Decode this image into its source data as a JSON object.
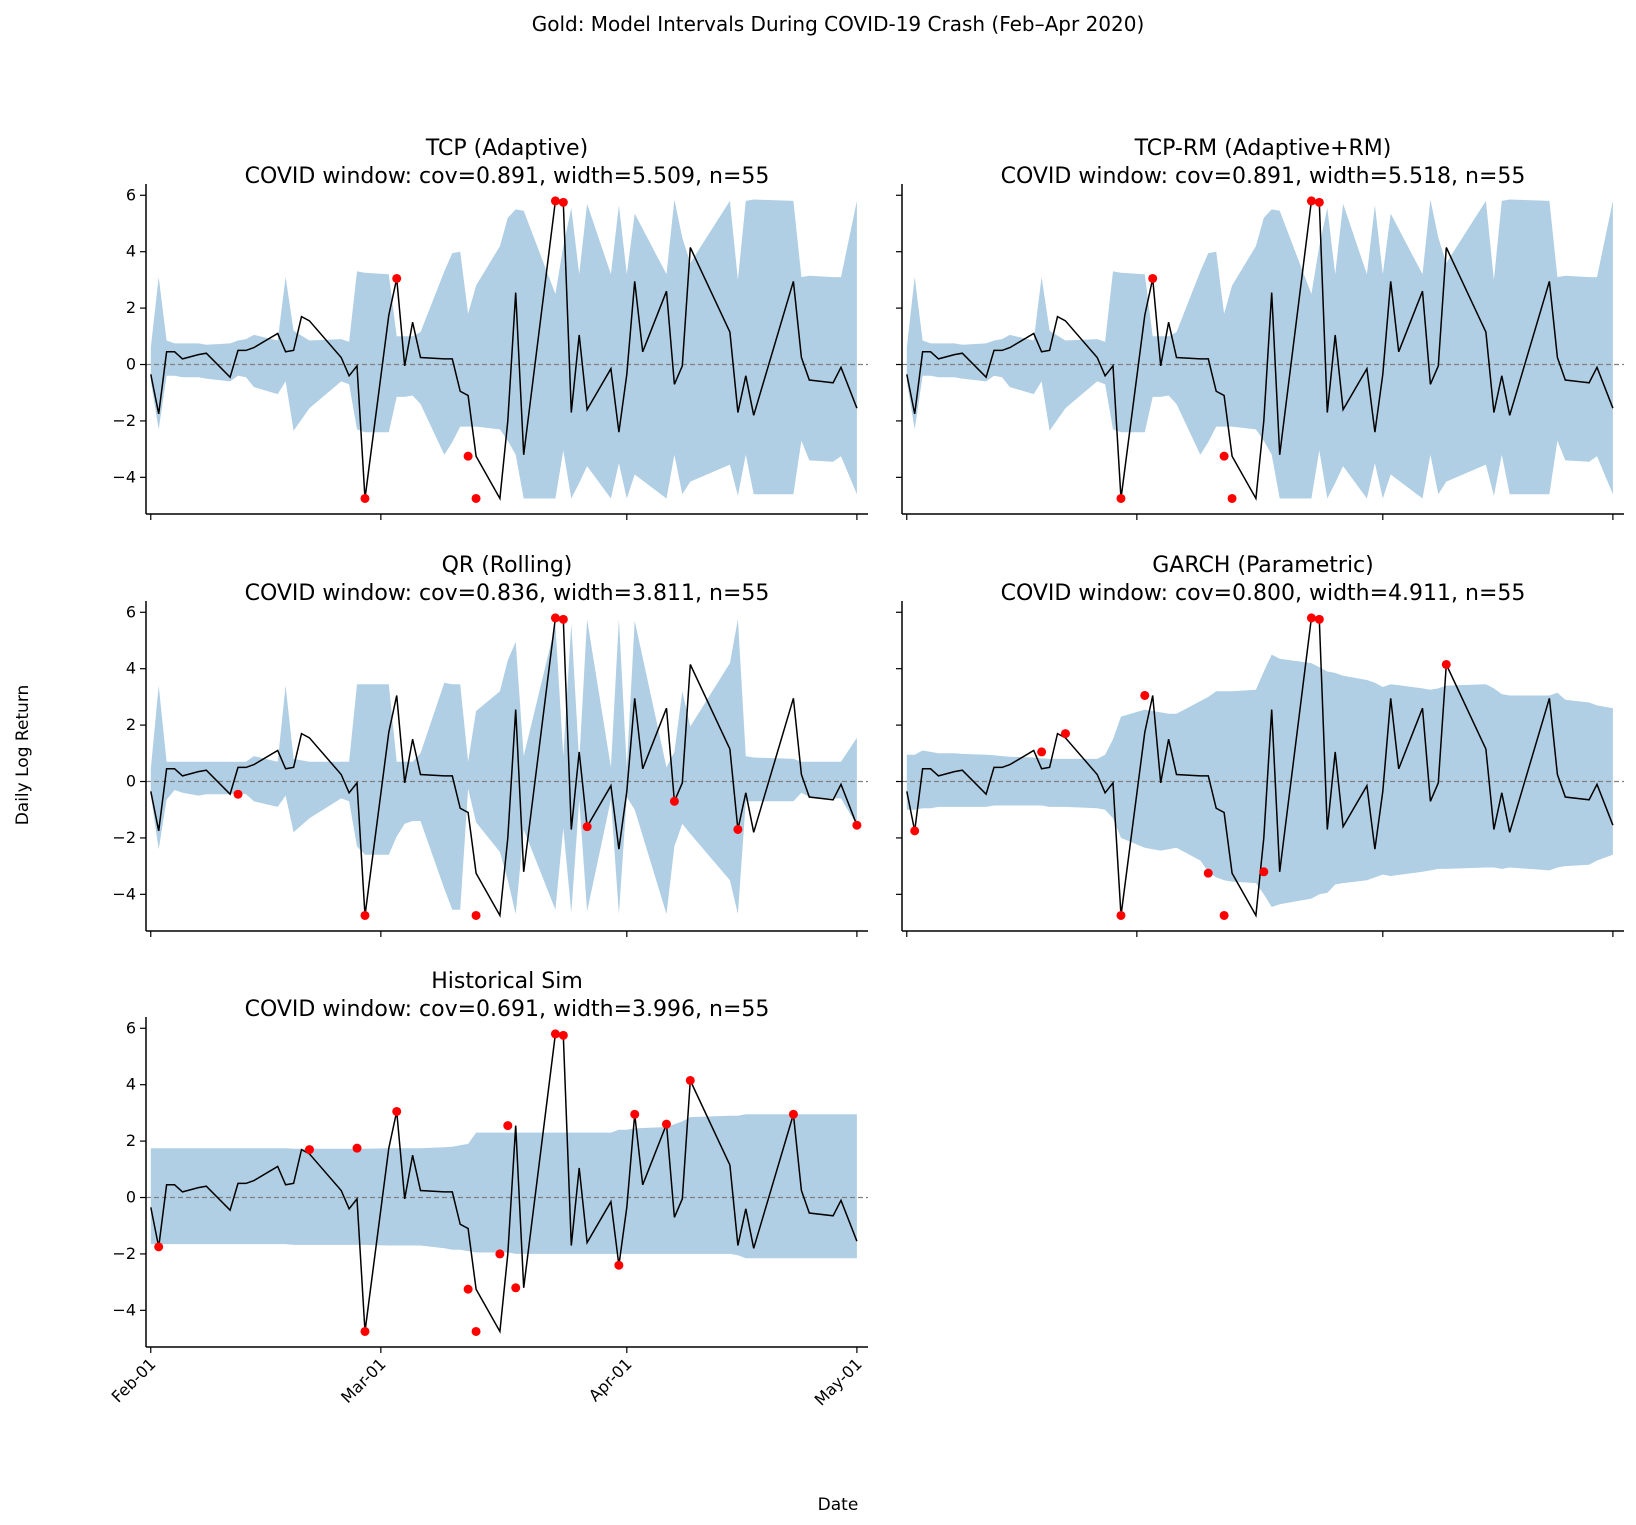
{
  "figure": {
    "suptitle": "Gold: Model Intervals During COVID-19 Crash (Feb–Apr 2020)",
    "xlabel": "Date",
    "ylabel": "Daily Log Return"
  },
  "colors": {
    "band": "#b0cfe4",
    "line": "#000000",
    "miss": "#ff0000",
    "zero": "#808080"
  },
  "chart_data": [
    {
      "type": "line",
      "id": "tcp",
      "title": "TCP (Adaptive)",
      "subtitle": "COVID window: cov=0.891, width=5.509, n=55",
      "xlim": [
        -0.6,
        90.4
      ],
      "ylim": [
        -5.3,
        6.4
      ],
      "yticks": [
        -4,
        -2,
        0,
        2,
        4,
        6
      ],
      "ytick_labels": [
        "−4",
        "−2",
        "0",
        "2",
        "4",
        "6"
      ],
      "show_xticklabels": false,
      "lower": [
        -0.6,
        -2.3,
        -0.4,
        -0.4,
        -0.45,
        -0.45,
        -0.5,
        -0.6,
        -0.4,
        -0.45,
        -0.8,
        -1.05,
        -0.6,
        -2.35,
        -1.55,
        -0.6,
        -0.7,
        -2.3,
        -2.4,
        -2.4,
        -1.15,
        -1.15,
        -1.1,
        -1.4,
        -3.2,
        -2.75,
        -2.2,
        -2.2,
        -2.2,
        -2.3,
        -2.7,
        -3.2,
        -4.75,
        -4.75,
        -3.05,
        -4.75,
        -4.2,
        -3.6,
        -4.75,
        -3.5,
        -4.75,
        -3.9,
        -4.75,
        -3.2,
        -4.6,
        -4.15,
        -3.55,
        -4.65,
        -3.2,
        -4.6,
        -4.6,
        -2.7,
        -3.4,
        -3.45,
        -3.25,
        -4.6
      ],
      "upper": [
        0.6,
        3.1,
        0.85,
        0.75,
        0.75,
        0.75,
        0.7,
        0.75,
        0.85,
        0.9,
        1.05,
        0.85,
        3.1,
        1.2,
        0.85,
        0.9,
        0.8,
        3.3,
        3.25,
        3.2,
        1.0,
        1.0,
        1.0,
        1.15,
        3.3,
        3.95,
        4.0,
        1.8,
        2.8,
        4.2,
        5.2,
        5.5,
        5.45,
        2.5,
        4.2,
        5.55,
        3.2,
        5.7,
        3.2,
        5.65,
        3.2,
        5.35,
        3.2,
        5.85,
        4.5,
        3.6,
        5.8,
        3.0,
        5.8,
        5.85,
        5.8,
        3.1,
        3.15,
        3.1,
        3.1,
        5.8
      ],
      "misses": [
        [
          31,
          3.05
        ],
        [
          27,
          -4.75
        ],
        [
          40,
          -3.25
        ],
        [
          41,
          -4.75
        ],
        [
          51,
          5.8
        ],
        [
          52,
          5.75
        ]
      ]
    },
    {
      "type": "line",
      "id": "tcprm",
      "title": "TCP-RM (Adaptive+RM)",
      "subtitle": "COVID window: cov=0.891, width=5.518, n=55",
      "xlim": [
        -0.6,
        90.4
      ],
      "ylim": [
        -5.3,
        6.4
      ],
      "yticks": [
        -4,
        -2,
        0,
        2,
        4,
        6
      ],
      "ytick_labels": [
        "−4",
        "−2",
        "0",
        "2",
        "4",
        "6"
      ],
      "show_xticklabels": false,
      "lower": [
        -0.6,
        -2.3,
        -0.4,
        -0.4,
        -0.45,
        -0.45,
        -0.5,
        -0.6,
        -0.4,
        -0.45,
        -0.8,
        -1.05,
        -0.6,
        -2.35,
        -1.55,
        -0.6,
        -0.7,
        -2.3,
        -2.4,
        -2.4,
        -1.15,
        -1.15,
        -1.1,
        -1.4,
        -3.2,
        -2.75,
        -2.2,
        -2.2,
        -2.2,
        -2.3,
        -2.7,
        -3.2,
        -4.75,
        -4.75,
        -3.05,
        -4.75,
        -4.2,
        -3.6,
        -4.75,
        -3.5,
        -4.75,
        -3.9,
        -4.75,
        -3.2,
        -4.6,
        -4.15,
        -3.55,
        -4.65,
        -3.2,
        -4.6,
        -4.6,
        -2.7,
        -3.4,
        -3.45,
        -3.25,
        -4.6
      ],
      "upper": [
        0.6,
        3.1,
        0.85,
        0.75,
        0.75,
        0.75,
        0.7,
        0.75,
        0.85,
        0.9,
        1.05,
        0.85,
        3.1,
        1.2,
        0.85,
        0.9,
        0.8,
        3.3,
        3.25,
        3.2,
        1.0,
        1.0,
        1.0,
        1.15,
        3.3,
        3.95,
        4.0,
        1.8,
        2.8,
        4.2,
        5.2,
        5.5,
        5.45,
        2.5,
        4.2,
        5.55,
        3.2,
        5.7,
        3.2,
        5.65,
        3.2,
        5.35,
        3.2,
        5.85,
        4.5,
        3.6,
        5.8,
        3.0,
        5.8,
        5.85,
        5.8,
        3.1,
        3.15,
        3.1,
        3.1,
        5.8
      ],
      "misses": [
        [
          31,
          3.05
        ],
        [
          27,
          -4.75
        ],
        [
          40,
          -3.25
        ],
        [
          41,
          -4.75
        ],
        [
          51,
          5.8
        ],
        [
          52,
          5.75
        ]
      ]
    },
    {
      "type": "line",
      "id": "qr",
      "title": "QR (Rolling)",
      "subtitle": "COVID window: cov=0.836, width=3.811, n=55",
      "xlim": [
        -0.6,
        90.4
      ],
      "ylim": [
        -5.3,
        6.4
      ],
      "yticks": [
        -4,
        -2,
        0,
        2,
        4,
        6
      ],
      "ytick_labels": [
        "−4",
        "−2",
        "0",
        "2",
        "4",
        "6"
      ],
      "show_xticklabels": false,
      "lower": [
        -0.5,
        -2.4,
        -0.65,
        -0.3,
        -0.4,
        -0.5,
        -0.45,
        -0.45,
        -0.4,
        -0.45,
        -0.7,
        -0.9,
        -0.5,
        -1.8,
        -1.3,
        -0.6,
        -0.7,
        -2.3,
        -2.6,
        -2.6,
        -1.95,
        -1.5,
        -1.4,
        -1.4,
        -3.8,
        -4.55,
        -4.55,
        -0.25,
        -1.45,
        -2.5,
        -3.5,
        -4.7,
        -1.7,
        -4.55,
        -1.65,
        -4.65,
        -0.65,
        -4.6,
        -0.65,
        -4.7,
        -0.55,
        -1.0,
        -4.7,
        -2.3,
        -1.5,
        -1.85,
        -3.5,
        -4.7,
        -0.7,
        -0.7,
        -0.7,
        -0.4,
        -0.55,
        -0.6,
        -0.6,
        -1.55
      ],
      "upper": [
        0.45,
        3.4,
        0.7,
        0.7,
        0.7,
        0.7,
        0.7,
        0.7,
        0.7,
        0.7,
        0.9,
        0.7,
        3.4,
        0.8,
        0.7,
        0.7,
        0.7,
        3.45,
        3.45,
        3.45,
        0.7,
        0.7,
        0.7,
        1.0,
        3.5,
        3.45,
        3.45,
        0.7,
        2.5,
        3.2,
        4.3,
        4.95,
        0.9,
        5.55,
        0.9,
        5.6,
        0.7,
        5.75,
        0.5,
        5.75,
        0.5,
        5.7,
        0.5,
        1.05,
        3.2,
        1.95,
        4.2,
        5.75,
        0.9,
        0.85,
        0.8,
        0.7,
        0.7,
        0.7,
        0.7,
        1.55
      ],
      "misses": [
        [
          11,
          -0.45
        ],
        [
          27,
          -4.75
        ],
        [
          41,
          -4.75
        ],
        [
          51,
          5.8
        ],
        [
          52,
          5.75
        ],
        [
          55,
          -1.6
        ],
        [
          66,
          -0.7
        ],
        [
          74,
          -1.7
        ],
        [
          89,
          -1.55
        ]
      ]
    },
    {
      "type": "line",
      "id": "garch",
      "title": "GARCH (Parametric)",
      "subtitle": "COVID window: cov=0.800, width=4.911, n=55",
      "xlim": [
        -0.6,
        90.4
      ],
      "ylim": [
        -5.3,
        6.4
      ],
      "yticks": [
        -4,
        -2,
        0,
        2,
        4,
        6
      ],
      "ytick_labels": [
        "−4",
        "−2",
        "0",
        "2",
        "4",
        "6"
      ],
      "show_xticklabels": false,
      "lower": [
        -1.0,
        -1.0,
        -0.95,
        -0.95,
        -0.9,
        -0.9,
        -0.9,
        -0.9,
        -0.85,
        -0.85,
        -0.85,
        -0.85,
        -0.85,
        -0.9,
        -0.9,
        -0.95,
        -1.0,
        -1.3,
        -2.0,
        -2.35,
        -2.4,
        -2.45,
        -2.4,
        -2.35,
        -2.8,
        -3.2,
        -3.4,
        -3.5,
        -3.55,
        -3.6,
        -4.0,
        -4.45,
        -4.35,
        -4.15,
        -4.0,
        -3.95,
        -3.65,
        -3.6,
        -3.5,
        -3.4,
        -3.3,
        -3.35,
        -3.2,
        -3.15,
        -3.1,
        -3.1,
        -3.05,
        -3.05,
        -3.1,
        -3.05,
        -3.15,
        -3.05,
        -3.0,
        -2.95,
        -2.8,
        -2.6
      ],
      "upper": [
        0.95,
        0.95,
        1.1,
        1.05,
        1.0,
        1.0,
        0.98,
        0.95,
        0.93,
        0.9,
        0.88,
        0.85,
        0.82,
        0.8,
        0.8,
        0.8,
        0.95,
        1.5,
        2.3,
        2.55,
        2.5,
        2.45,
        2.4,
        2.4,
        2.85,
        3.0,
        3.2,
        3.2,
        3.2,
        3.25,
        3.9,
        4.5,
        4.35,
        4.2,
        4.05,
        3.9,
        3.85,
        3.75,
        3.6,
        3.5,
        3.35,
        3.45,
        3.3,
        3.25,
        3.3,
        3.4,
        3.45,
        3.3,
        3.1,
        3.05,
        3.05,
        3.15,
        2.9,
        2.8,
        2.7,
        2.6
      ],
      "misses": [
        [
          1,
          -1.75
        ],
        [
          17,
          1.05
        ],
        [
          20,
          1.7
        ],
        [
          27,
          -4.75
        ],
        [
          30,
          3.05
        ],
        [
          38,
          -3.25
        ],
        [
          40,
          -4.75
        ],
        [
          45,
          -3.2
        ],
        [
          51,
          5.8
        ],
        [
          52,
          5.75
        ],
        [
          68,
          4.15
        ]
      ]
    },
    {
      "type": "line",
      "id": "hist",
      "title": "Historical Sim",
      "subtitle": "COVID window: cov=0.691, width=3.996, n=55",
      "xlim": [
        -0.6,
        90.4
      ],
      "ylim": [
        -5.3,
        6.4
      ],
      "yticks": [
        -4,
        -2,
        0,
        2,
        4,
        6
      ],
      "ytick_labels": [
        "−4",
        "−2",
        "0",
        "2",
        "4",
        "6"
      ],
      "show_xticklabels": true,
      "xticks": [
        0,
        29,
        60,
        89
      ],
      "xtick_labels": [
        "Feb-01",
        "Mar-01",
        "Apr-01",
        "May-01"
      ],
      "lower": [
        -1.65,
        -1.65,
        -1.65,
        -1.65,
        -1.65,
        -1.65,
        -1.65,
        -1.65,
        -1.65,
        -1.65,
        -1.65,
        -1.65,
        -1.65,
        -1.68,
        -1.68,
        -1.68,
        -1.68,
        -1.68,
        -1.68,
        -1.7,
        -1.7,
        -1.7,
        -1.7,
        -1.7,
        -1.8,
        -1.85,
        -1.85,
        -1.9,
        -1.95,
        -1.95,
        -1.95,
        -2.0,
        -2.0,
        -2.0,
        -2.0,
        -2.0,
        -2.0,
        -2.0,
        -2.0,
        -2.0,
        -2.0,
        -2.0,
        -2.0,
        -2.0,
        -2.0,
        -2.0,
        -2.0,
        -2.05,
        -2.15,
        -2.15,
        -2.15,
        -2.15,
        -2.15,
        -2.15,
        -2.15,
        -2.15
      ],
      "upper": [
        1.75,
        1.75,
        1.75,
        1.75,
        1.75,
        1.75,
        1.75,
        1.75,
        1.75,
        1.75,
        1.75,
        1.75,
        1.75,
        1.73,
        1.73,
        1.73,
        1.73,
        1.73,
        1.73,
        1.75,
        1.75,
        1.75,
        1.75,
        1.75,
        1.78,
        1.8,
        1.85,
        1.9,
        2.3,
        2.3,
        2.3,
        2.3,
        2.3,
        2.3,
        2.3,
        2.3,
        2.3,
        2.3,
        2.3,
        2.4,
        2.4,
        2.45,
        2.5,
        2.6,
        2.7,
        2.85,
        2.9,
        2.9,
        2.95,
        2.95,
        2.95,
        2.95,
        2.95,
        2.95,
        2.95,
        2.95
      ],
      "misses": [
        [
          1,
          -1.75
        ],
        [
          20,
          1.7
        ],
        [
          26,
          1.75
        ],
        [
          27,
          -4.75
        ],
        [
          31,
          3.05
        ],
        [
          40,
          -3.25
        ],
        [
          41,
          -4.75
        ],
        [
          44,
          -2.0
        ],
        [
          45,
          2.55
        ],
        [
          46,
          -3.2
        ],
        [
          51,
          5.8
        ],
        [
          52,
          5.75
        ],
        [
          59,
          -2.4
        ],
        [
          61,
          2.95
        ],
        [
          65,
          2.6
        ],
        [
          68,
          4.15
        ],
        [
          81,
          2.95
        ]
      ]
    }
  ],
  "series_x": [
    0,
    1,
    2,
    3,
    4,
    6,
    7,
    10,
    11,
    12,
    13,
    16,
    17,
    18,
    19,
    20,
    24,
    25,
    26,
    27,
    30,
    31,
    32,
    33,
    34,
    37,
    38,
    39,
    40,
    41,
    44,
    45,
    46,
    47,
    51,
    52,
    53,
    54,
    55,
    58,
    59,
    60,
    61,
    62,
    65,
    66,
    67,
    68,
    73,
    74,
    75,
    76,
    81,
    82,
    83,
    86,
    87,
    89
  ],
  "series_y": [
    -0.35,
    -1.75,
    0.45,
    0.45,
    0.2,
    0.35,
    0.4,
    -0.45,
    0.5,
    0.5,
    0.6,
    1.1,
    0.45,
    0.5,
    1.7,
    1.55,
    0.25,
    -0.4,
    -0.05,
    -4.75,
    1.75,
    3.05,
    -0.05,
    1.5,
    0.25,
    0.2,
    0.2,
    -0.95,
    -1.1,
    -3.25,
    -4.75,
    -2.0,
    2.55,
    -3.2,
    5.8,
    5.75,
    -1.7,
    1.05,
    -1.6,
    -0.15,
    -2.4,
    -0.35,
    2.95,
    0.45,
    2.6,
    -0.7,
    -0.05,
    4.15,
    1.15,
    -1.7,
    -0.4,
    -1.8,
    2.95,
    0.25,
    -0.55,
    -0.65,
    -0.1,
    -1.55
  ]
}
